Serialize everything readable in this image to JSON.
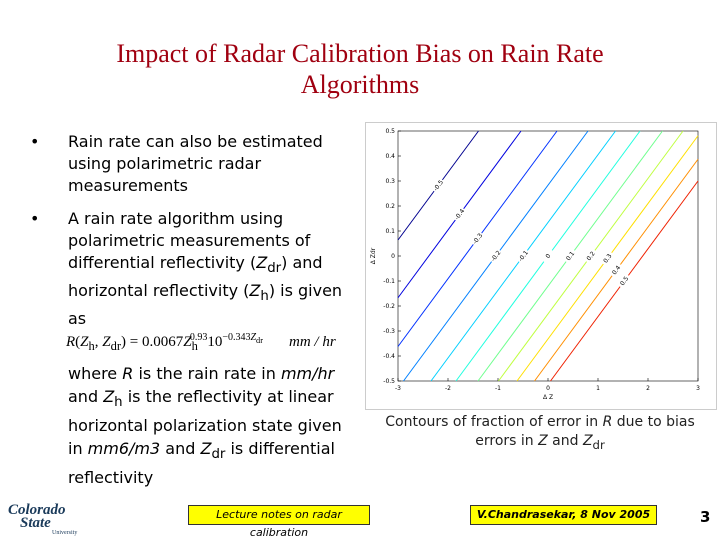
{
  "title": "Impact of Radar Calibration Bias on Rain Rate Algorithms",
  "bullets": [
    [
      "Rain rate can also be estimated using polarimetric radar measurements"
    ],
    [
      "A rain rate algorithm using polarimetric measurements of differential reflectivity (",
      "Z",
      "dr",
      ") and horizontal reflectivity (",
      "Z",
      "h",
      ") is given as"
    ]
  ],
  "equation": [
    "R",
    "(",
    "Z",
    "h",
    ", ",
    "Z",
    "dr",
    ") = 0.0067",
    "Z",
    "h",
    "0.93",
    "10",
    "−0.343",
    "Z",
    "dr",
    "mm / hr"
  ],
  "body": [
    "where ",
    "R",
    " is the rain rate in ",
    "mm/hr",
    " and ",
    "Z",
    "h",
    " is the reflectivity at linear horizontal polarization state given in ",
    "mm6/m3",
    " and ",
    "Z",
    "dr",
    " is differential reflectivity"
  ],
  "caption": [
    "Contours of fraction of error in ",
    "R",
    " due to bias errors in ",
    "Z",
    " and ",
    "Z",
    "dr"
  ],
  "chart_data": {
    "type": "contour",
    "xlabel": "Δ Z",
    "ylabel": "Δ Zdr",
    "xlim": [
      -3,
      3
    ],
    "ylim": [
      -0.5,
      0.5
    ],
    "xticks": [
      -3,
      -2,
      -1,
      0,
      1,
      2,
      3
    ],
    "yticks": [
      -0.5,
      -0.4,
      -0.3,
      -0.2,
      -0.1,
      0,
      0.1,
      0.2,
      0.3,
      0.4,
      0.5
    ],
    "lines": [
      {
        "level": -0.5,
        "color": "#00008f",
        "x": [
          -3,
          -1.39
        ],
        "y": [
          0.064,
          0.5
        ]
      },
      {
        "level": -0.4,
        "color": "#0000df",
        "x": [
          -3,
          -0.54
        ],
        "y": [
          -0.167,
          0.5
        ]
      },
      {
        "level": -0.3,
        "color": "#0030ff",
        "x": [
          -3,
          0.18
        ],
        "y": [
          -0.362,
          0.5
        ]
      },
      {
        "level": -0.2,
        "color": "#0080ff",
        "x": [
          -2.89,
          0.8
        ],
        "y": [
          -0.5,
          0.5
        ]
      },
      {
        "level": -0.1,
        "color": "#00cfff",
        "x": [
          -2.34,
          1.35
        ],
        "y": [
          -0.5,
          0.5
        ]
      },
      {
        "level": 0,
        "color": "#20ffdf",
        "x": [
          -1.84,
          1.84
        ],
        "y": [
          -0.5,
          0.5
        ]
      },
      {
        "level": 0.1,
        "color": "#70ff8f",
        "x": [
          -1.4,
          2.29
        ],
        "y": [
          -0.5,
          0.5
        ]
      },
      {
        "level": 0.2,
        "color": "#bfff40",
        "x": [
          -0.99,
          2.7
        ],
        "y": [
          -0.5,
          0.5
        ]
      },
      {
        "level": 0.3,
        "color": "#ffdf00",
        "x": [
          -0.62,
          3
        ],
        "y": [
          -0.5,
          0.481
        ]
      },
      {
        "level": 0.4,
        "color": "#ff8f00",
        "x": [
          -0.27,
          3
        ],
        "y": [
          -0.5,
          0.387
        ]
      },
      {
        "level": 0.5,
        "color": "#ef2000",
        "x": [
          0.05,
          3
        ],
        "y": [
          -0.5,
          0.3
        ]
      }
    ]
  },
  "footer": {
    "left_note": "Lecture notes on radar calibration",
    "right_note": "V.Chandrasekar, 8 Nov 2005",
    "page": "3",
    "logo": [
      "Colorado",
      "State",
      "University"
    ]
  }
}
